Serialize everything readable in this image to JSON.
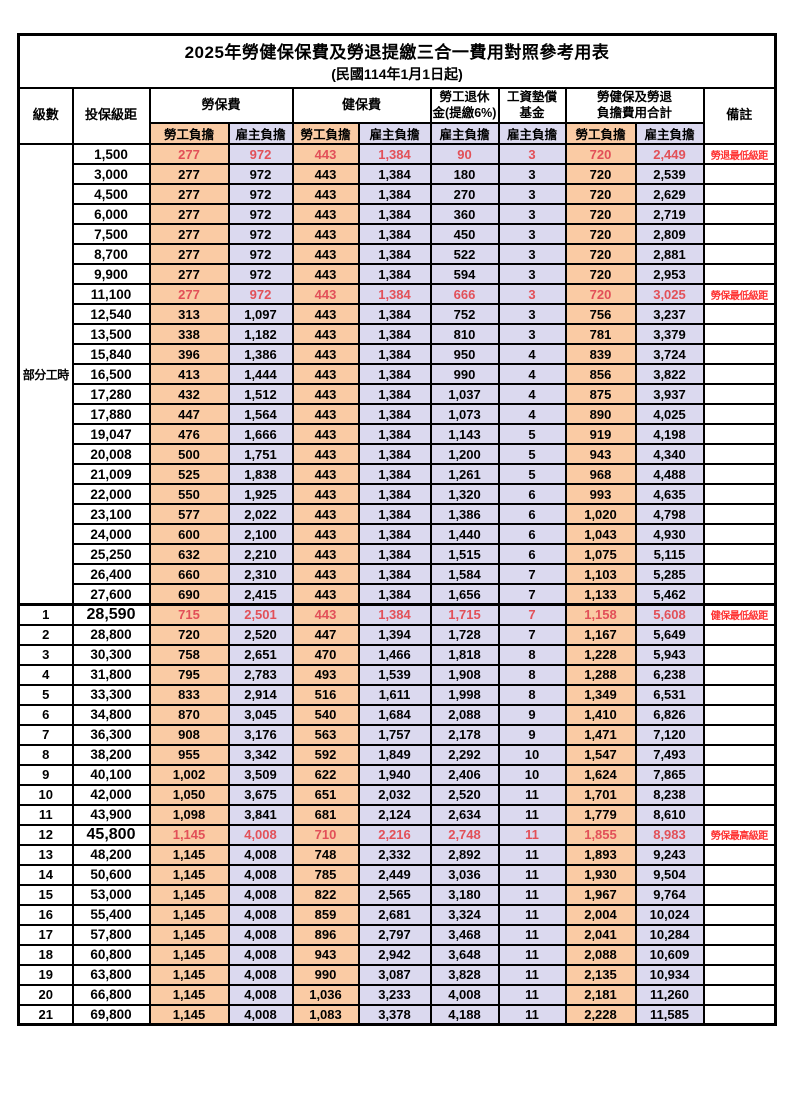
{
  "page": {
    "title_line1": "2025年勞健保保費及勞退提繳三合一費用對照參考用表",
    "title_line2": "(民國114年1月1日起)"
  },
  "table": {
    "headers": {
      "level": "級數",
      "bracket": "投保級距",
      "labor_ins": "勞保費",
      "health_ins": "健保費",
      "pension": "勞工退休\n金(提繳6%)",
      "wage_fund": "工資墊償\n基金",
      "total": "勞健保及勞退\n負擔費用合計",
      "remark": "備註",
      "employee": "勞工負擔",
      "employer": "雇主負擔"
    },
    "part_time_label": "部分工時",
    "part_time_row_count": 23,
    "colors": {
      "employee_bg": "#FACBA4",
      "employer_bg": "#DBD9EF",
      "highlight_text": "#E25058",
      "remark_text": "#FF3333"
    },
    "rows": [
      {
        "level": "",
        "bracket": "1,500",
        "values": [
          "277",
          "972",
          "443",
          "1,384",
          "90",
          "3",
          "720",
          "2,449"
        ],
        "remark": "勞退最低級距",
        "highlight": true
      },
      {
        "level": "",
        "bracket": "3,000",
        "values": [
          "277",
          "972",
          "443",
          "1,384",
          "180",
          "3",
          "720",
          "2,539"
        ],
        "remark": ""
      },
      {
        "level": "",
        "bracket": "4,500",
        "values": [
          "277",
          "972",
          "443",
          "1,384",
          "270",
          "3",
          "720",
          "2,629"
        ],
        "remark": ""
      },
      {
        "level": "",
        "bracket": "6,000",
        "values": [
          "277",
          "972",
          "443",
          "1,384",
          "360",
          "3",
          "720",
          "2,719"
        ],
        "remark": ""
      },
      {
        "level": "",
        "bracket": "7,500",
        "values": [
          "277",
          "972",
          "443",
          "1,384",
          "450",
          "3",
          "720",
          "2,809"
        ],
        "remark": ""
      },
      {
        "level": "",
        "bracket": "8,700",
        "values": [
          "277",
          "972",
          "443",
          "1,384",
          "522",
          "3",
          "720",
          "2,881"
        ],
        "remark": ""
      },
      {
        "level": "",
        "bracket": "9,900",
        "values": [
          "277",
          "972",
          "443",
          "1,384",
          "594",
          "3",
          "720",
          "2,953"
        ],
        "remark": ""
      },
      {
        "level": "",
        "bracket": "11,100",
        "values": [
          "277",
          "972",
          "443",
          "1,384",
          "666",
          "3",
          "720",
          "3,025"
        ],
        "remark": "勞保最低級距",
        "highlight": true
      },
      {
        "level": "",
        "bracket": "12,540",
        "values": [
          "313",
          "1,097",
          "443",
          "1,384",
          "752",
          "3",
          "756",
          "3,237"
        ],
        "remark": ""
      },
      {
        "level": "",
        "bracket": "13,500",
        "values": [
          "338",
          "1,182",
          "443",
          "1,384",
          "810",
          "3",
          "781",
          "3,379"
        ],
        "remark": ""
      },
      {
        "level": "",
        "bracket": "15,840",
        "values": [
          "396",
          "1,386",
          "443",
          "1,384",
          "950",
          "4",
          "839",
          "3,724"
        ],
        "remark": ""
      },
      {
        "level": "",
        "bracket": "16,500",
        "values": [
          "413",
          "1,444",
          "443",
          "1,384",
          "990",
          "4",
          "856",
          "3,822"
        ],
        "remark": ""
      },
      {
        "level": "",
        "bracket": "17,280",
        "values": [
          "432",
          "1,512",
          "443",
          "1,384",
          "1,037",
          "4",
          "875",
          "3,937"
        ],
        "remark": ""
      },
      {
        "level": "",
        "bracket": "17,880",
        "values": [
          "447",
          "1,564",
          "443",
          "1,384",
          "1,073",
          "4",
          "890",
          "4,025"
        ],
        "remark": ""
      },
      {
        "level": "",
        "bracket": "19,047",
        "values": [
          "476",
          "1,666",
          "443",
          "1,384",
          "1,143",
          "5",
          "919",
          "4,198"
        ],
        "remark": ""
      },
      {
        "level": "",
        "bracket": "20,008",
        "values": [
          "500",
          "1,751",
          "443",
          "1,384",
          "1,200",
          "5",
          "943",
          "4,340"
        ],
        "remark": ""
      },
      {
        "level": "",
        "bracket": "21,009",
        "values": [
          "525",
          "1,838",
          "443",
          "1,384",
          "1,261",
          "5",
          "968",
          "4,488"
        ],
        "remark": ""
      },
      {
        "level": "",
        "bracket": "22,000",
        "values": [
          "550",
          "1,925",
          "443",
          "1,384",
          "1,320",
          "6",
          "993",
          "4,635"
        ],
        "remark": ""
      },
      {
        "level": "",
        "bracket": "23,100",
        "values": [
          "577",
          "2,022",
          "443",
          "1,384",
          "1,386",
          "6",
          "1,020",
          "4,798"
        ],
        "remark": ""
      },
      {
        "level": "",
        "bracket": "24,000",
        "values": [
          "600",
          "2,100",
          "443",
          "1,384",
          "1,440",
          "6",
          "1,043",
          "4,930"
        ],
        "remark": ""
      },
      {
        "level": "",
        "bracket": "25,250",
        "values": [
          "632",
          "2,210",
          "443",
          "1,384",
          "1,515",
          "6",
          "1,075",
          "5,115"
        ],
        "remark": ""
      },
      {
        "level": "",
        "bracket": "26,400",
        "values": [
          "660",
          "2,310",
          "443",
          "1,384",
          "1,584",
          "7",
          "1,103",
          "5,285"
        ],
        "remark": ""
      },
      {
        "level": "",
        "bracket": "27,600",
        "values": [
          "690",
          "2,415",
          "443",
          "1,384",
          "1,656",
          "7",
          "1,133",
          "5,462"
        ],
        "remark": ""
      },
      {
        "level": "1",
        "bracket": "28,590",
        "values": [
          "715",
          "2,501",
          "443",
          "1,384",
          "1,715",
          "7",
          "1,158",
          "5,608"
        ],
        "remark": "健保最低級距",
        "highlight": true,
        "key": true,
        "section": true
      },
      {
        "level": "2",
        "bracket": "28,800",
        "values": [
          "720",
          "2,520",
          "447",
          "1,394",
          "1,728",
          "7",
          "1,167",
          "5,649"
        ],
        "remark": ""
      },
      {
        "level": "3",
        "bracket": "30,300",
        "values": [
          "758",
          "2,651",
          "470",
          "1,466",
          "1,818",
          "8",
          "1,228",
          "5,943"
        ],
        "remark": ""
      },
      {
        "level": "4",
        "bracket": "31,800",
        "values": [
          "795",
          "2,783",
          "493",
          "1,539",
          "1,908",
          "8",
          "1,288",
          "6,238"
        ],
        "remark": ""
      },
      {
        "level": "5",
        "bracket": "33,300",
        "values": [
          "833",
          "2,914",
          "516",
          "1,611",
          "1,998",
          "8",
          "1,349",
          "6,531"
        ],
        "remark": ""
      },
      {
        "level": "6",
        "bracket": "34,800",
        "values": [
          "870",
          "3,045",
          "540",
          "1,684",
          "2,088",
          "9",
          "1,410",
          "6,826"
        ],
        "remark": ""
      },
      {
        "level": "7",
        "bracket": "36,300",
        "values": [
          "908",
          "3,176",
          "563",
          "1,757",
          "2,178",
          "9",
          "1,471",
          "7,120"
        ],
        "remark": ""
      },
      {
        "level": "8",
        "bracket": "38,200",
        "values": [
          "955",
          "3,342",
          "592",
          "1,849",
          "2,292",
          "10",
          "1,547",
          "7,493"
        ],
        "remark": ""
      },
      {
        "level": "9",
        "bracket": "40,100",
        "values": [
          "1,002",
          "3,509",
          "622",
          "1,940",
          "2,406",
          "10",
          "1,624",
          "7,865"
        ],
        "remark": ""
      },
      {
        "level": "10",
        "bracket": "42,000",
        "values": [
          "1,050",
          "3,675",
          "651",
          "2,032",
          "2,520",
          "11",
          "1,701",
          "8,238"
        ],
        "remark": ""
      },
      {
        "level": "11",
        "bracket": "43,900",
        "values": [
          "1,098",
          "3,841",
          "681",
          "2,124",
          "2,634",
          "11",
          "1,779",
          "8,610"
        ],
        "remark": ""
      },
      {
        "level": "12",
        "bracket": "45,800",
        "values": [
          "1,145",
          "4,008",
          "710",
          "2,216",
          "2,748",
          "11",
          "1,855",
          "8,983"
        ],
        "remark": "勞保最高級距",
        "highlight": true,
        "key": true
      },
      {
        "level": "13",
        "bracket": "48,200",
        "values": [
          "1,145",
          "4,008",
          "748",
          "2,332",
          "2,892",
          "11",
          "1,893",
          "9,243"
        ],
        "remark": ""
      },
      {
        "level": "14",
        "bracket": "50,600",
        "values": [
          "1,145",
          "4,008",
          "785",
          "2,449",
          "3,036",
          "11",
          "1,930",
          "9,504"
        ],
        "remark": ""
      },
      {
        "level": "15",
        "bracket": "53,000",
        "values": [
          "1,145",
          "4,008",
          "822",
          "2,565",
          "3,180",
          "11",
          "1,967",
          "9,764"
        ],
        "remark": ""
      },
      {
        "level": "16",
        "bracket": "55,400",
        "values": [
          "1,145",
          "4,008",
          "859",
          "2,681",
          "3,324",
          "11",
          "2,004",
          "10,024"
        ],
        "remark": ""
      },
      {
        "level": "17",
        "bracket": "57,800",
        "values": [
          "1,145",
          "4,008",
          "896",
          "2,797",
          "3,468",
          "11",
          "2,041",
          "10,284"
        ],
        "remark": ""
      },
      {
        "level": "18",
        "bracket": "60,800",
        "values": [
          "1,145",
          "4,008",
          "943",
          "2,942",
          "3,648",
          "11",
          "2,088",
          "10,609"
        ],
        "remark": ""
      },
      {
        "level": "19",
        "bracket": "63,800",
        "values": [
          "1,145",
          "4,008",
          "990",
          "3,087",
          "3,828",
          "11",
          "2,135",
          "10,934"
        ],
        "remark": ""
      },
      {
        "level": "20",
        "bracket": "66,800",
        "values": [
          "1,145",
          "4,008",
          "1,036",
          "3,233",
          "4,008",
          "11",
          "2,181",
          "11,260"
        ],
        "remark": ""
      },
      {
        "level": "21",
        "bracket": "69,800",
        "values": [
          "1,145",
          "4,008",
          "1,083",
          "3,378",
          "4,188",
          "11",
          "2,228",
          "11,585"
        ],
        "remark": ""
      }
    ]
  }
}
